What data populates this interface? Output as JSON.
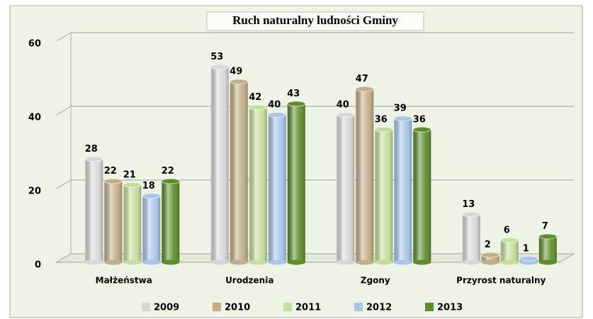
{
  "chart_data": {
    "type": "bar",
    "title": "Ruch naturalny ludności Gminy",
    "categories": [
      "Małżeństwa",
      "Urodzenia",
      "Zgony",
      "Przyrost naturalny"
    ],
    "series": [
      {
        "name": "2009",
        "color": "#d8d8d8",
        "values": [
          28,
          53,
          40,
          13
        ]
      },
      {
        "name": "2010",
        "color": "#c2ae88",
        "values": [
          22,
          49,
          47,
          2
        ]
      },
      {
        "name": "2011",
        "color": "#c4df9b",
        "values": [
          21,
          42,
          36,
          6
        ]
      },
      {
        "name": "2012",
        "color": "#a9c5ea",
        "values": [
          18,
          40,
          39,
          1
        ]
      },
      {
        "name": "2013",
        "color": "#5e8e2c",
        "values": [
          22,
          43,
          36,
          7
        ]
      }
    ],
    "ylim": [
      0,
      60
    ],
    "yticks": [
      0,
      20,
      40,
      60
    ],
    "grid": true,
    "legend": "bottom"
  }
}
